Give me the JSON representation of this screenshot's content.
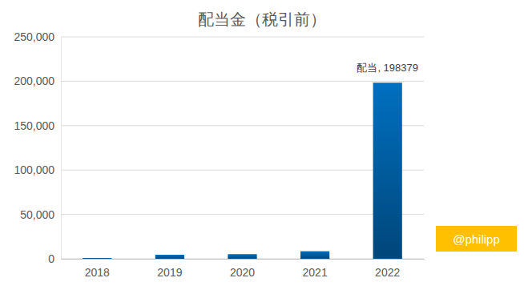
{
  "chart_data": {
    "type": "bar",
    "title": "配当金（税引前）",
    "categories": [
      "2018",
      "2019",
      "2020",
      "2021",
      "2022"
    ],
    "values": [
      900,
      4500,
      5200,
      8500,
      198379
    ],
    "value_labels": [
      null,
      null,
      null,
      null,
      "配当, 198379"
    ],
    "data_labels": true,
    "color": "#0070c0",
    "ylim": [
      0,
      250000
    ],
    "yticks": [
      0,
      {
        "value": 50000,
        "label": "50,000"
      },
      {
        "value": 100000,
        "label": "100,000"
      },
      {
        "value": 150000,
        "label": "150,000"
      },
      {
        "value": 200000,
        "label": "200,000"
      },
      {
        "value": 250000,
        "label": "250,000"
      }
    ],
    "grid": true,
    "annotation": "@philipp"
  }
}
